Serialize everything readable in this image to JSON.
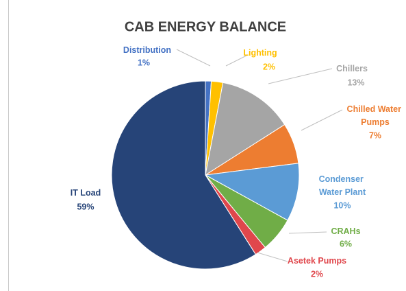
{
  "chart_data": {
    "type": "pie",
    "title": "CAB ENERGY BALANCE",
    "categories": [
      "Distribution",
      "Lighting",
      "Chillers",
      "Chilled Water Pumps",
      "Condenser Water Plant",
      "CRAHs",
      "Asetek Pumps",
      "IT Load"
    ],
    "values": [
      1,
      2,
      13,
      7,
      10,
      6,
      2,
      59
    ],
    "value_labels": [
      "1%",
      "2%",
      "13%",
      "7%",
      "10%",
      "6%",
      "2%",
      "59%"
    ],
    "colors": [
      "#4472c4",
      "#ffc000",
      "#a5a5a5",
      "#ed7d31",
      "#5b9bd5",
      "#70ad47",
      "#e0474c",
      "#264478"
    ]
  }
}
